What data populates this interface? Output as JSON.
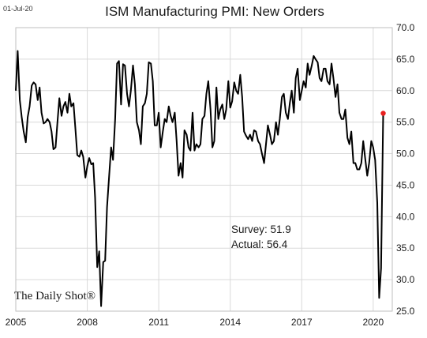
{
  "header": {
    "date": "01-Jul-20",
    "title": "ISM Manufacturing PMI: New Orders"
  },
  "annotations": {
    "survey": "Survey: 51.9",
    "actual": "Actual:  56.4"
  },
  "brand": {
    "logo_text": "The Daily Shot®"
  },
  "colors": {
    "line": "#000000",
    "last_point": "#e8201f",
    "grid": "#d9d9d9"
  },
  "chart_data": {
    "type": "line",
    "title": "ISM Manufacturing PMI: New Orders",
    "xlabel": "",
    "ylabel": "",
    "ylim": [
      25,
      70
    ],
    "xlim": [
      2005,
      2020.8
    ],
    "grid": true,
    "y_axis_side": "right",
    "y_ticks": [
      "70.0",
      "65.0",
      "60.0",
      "55.0",
      "50.0",
      "45.0",
      "40.0",
      "35.0",
      "30.0",
      "25.0"
    ],
    "x_ticks": [
      "2005",
      "2008",
      "2011",
      "2014",
      "2017",
      "2020"
    ],
    "series": [
      {
        "values": [
          [
            2005.0,
            60.0
          ],
          [
            2005.08,
            66.3
          ],
          [
            2005.17,
            58.5
          ],
          [
            2005.25,
            55.8
          ],
          [
            2005.33,
            53.5
          ],
          [
            2005.42,
            51.8
          ],
          [
            2005.5,
            55.8
          ],
          [
            2005.58,
            57.5
          ],
          [
            2005.67,
            60.8
          ],
          [
            2005.75,
            61.3
          ],
          [
            2005.83,
            61.0
          ],
          [
            2005.92,
            58.5
          ],
          [
            2006.0,
            60.5
          ],
          [
            2006.08,
            56.5
          ],
          [
            2006.17,
            54.8
          ],
          [
            2006.25,
            55.0
          ],
          [
            2006.33,
            55.5
          ],
          [
            2006.42,
            55.0
          ],
          [
            2006.5,
            53.5
          ],
          [
            2006.58,
            50.7
          ],
          [
            2006.67,
            51.0
          ],
          [
            2006.75,
            55.0
          ],
          [
            2006.83,
            58.8
          ],
          [
            2006.92,
            56.0
          ],
          [
            2007.0,
            57.5
          ],
          [
            2007.08,
            58.2
          ],
          [
            2007.17,
            56.5
          ],
          [
            2007.25,
            59.5
          ],
          [
            2007.33,
            57.5
          ],
          [
            2007.42,
            58.0
          ],
          [
            2007.5,
            54.0
          ],
          [
            2007.58,
            49.8
          ],
          [
            2007.67,
            49.5
          ],
          [
            2007.75,
            50.5
          ],
          [
            2007.83,
            49.5
          ],
          [
            2007.92,
            46.2
          ],
          [
            2008.0,
            48.0
          ],
          [
            2008.08,
            49.3
          ],
          [
            2008.17,
            48.3
          ],
          [
            2008.25,
            48.5
          ],
          [
            2008.33,
            43.0
          ],
          [
            2008.42,
            32.0
          ],
          [
            2008.5,
            34.5
          ],
          [
            2008.58,
            25.8
          ],
          [
            2008.67,
            32.8
          ],
          [
            2008.75,
            33.0
          ],
          [
            2008.83,
            41.5
          ],
          [
            2008.92,
            46.5
          ],
          [
            2009.0,
            51.0
          ],
          [
            2009.08,
            49.0
          ],
          [
            2009.17,
            55.5
          ],
          [
            2009.25,
            64.3
          ],
          [
            2009.33,
            64.7
          ],
          [
            2009.42,
            57.8
          ],
          [
            2009.5,
            64.2
          ],
          [
            2009.58,
            64.0
          ],
          [
            2009.67,
            59.5
          ],
          [
            2009.75,
            57.5
          ],
          [
            2009.83,
            60.0
          ],
          [
            2009.92,
            64.0
          ],
          [
            2010.0,
            61.0
          ],
          [
            2010.08,
            55.0
          ],
          [
            2010.17,
            53.7
          ],
          [
            2010.25,
            51.5
          ],
          [
            2010.33,
            57.5
          ],
          [
            2010.42,
            58.0
          ],
          [
            2010.5,
            59.5
          ],
          [
            2010.58,
            64.5
          ],
          [
            2010.67,
            64.3
          ],
          [
            2010.75,
            61.5
          ],
          [
            2010.83,
            54.5
          ],
          [
            2010.92,
            54.5
          ],
          [
            2011.0,
            56.5
          ],
          [
            2011.08,
            51.0
          ],
          [
            2011.17,
            53.5
          ],
          [
            2011.25,
            55.5
          ],
          [
            2011.33,
            55.0
          ],
          [
            2011.42,
            57.5
          ],
          [
            2011.5,
            56.0
          ],
          [
            2011.58,
            55.0
          ],
          [
            2011.67,
            56.5
          ],
          [
            2011.75,
            52.0
          ],
          [
            2011.83,
            46.5
          ],
          [
            2011.92,
            48.5
          ],
          [
            2012.0,
            46.2
          ],
          [
            2012.08,
            53.7
          ],
          [
            2012.17,
            53.0
          ],
          [
            2012.25,
            51.0
          ],
          [
            2012.33,
            50.5
          ],
          [
            2012.42,
            56.5
          ],
          [
            2012.5,
            50.5
          ],
          [
            2012.58,
            51.5
          ],
          [
            2012.67,
            51.0
          ],
          [
            2012.75,
            51.5
          ],
          [
            2012.83,
            55.5
          ],
          [
            2012.92,
            56.0
          ],
          [
            2013.0,
            59.5
          ],
          [
            2013.08,
            61.5
          ],
          [
            2013.17,
            57.0
          ],
          [
            2013.25,
            51.0
          ],
          [
            2013.33,
            52.0
          ],
          [
            2013.42,
            60.5
          ],
          [
            2013.5,
            55.5
          ],
          [
            2013.58,
            57.0
          ],
          [
            2013.67,
            57.8
          ],
          [
            2013.75,
            55.5
          ],
          [
            2013.83,
            57.0
          ],
          [
            2013.92,
            61.5
          ],
          [
            2014.0,
            57.3
          ],
          [
            2014.08,
            58.3
          ],
          [
            2014.17,
            61.3
          ],
          [
            2014.25,
            60.0
          ],
          [
            2014.33,
            59.5
          ],
          [
            2014.42,
            62.5
          ],
          [
            2014.5,
            59.0
          ],
          [
            2014.58,
            53.5
          ],
          [
            2014.67,
            52.8
          ],
          [
            2014.75,
            52.3
          ],
          [
            2014.83,
            53.0
          ],
          [
            2014.92,
            52.0
          ],
          [
            2015.0,
            53.7
          ],
          [
            2015.08,
            53.5
          ],
          [
            2015.17,
            52.0
          ],
          [
            2015.25,
            51.5
          ],
          [
            2015.33,
            50.0
          ],
          [
            2015.42,
            48.5
          ],
          [
            2015.5,
            51.5
          ],
          [
            2015.58,
            54.5
          ],
          [
            2015.67,
            53.0
          ],
          [
            2015.75,
            51.5
          ],
          [
            2015.83,
            52.0
          ],
          [
            2015.92,
            55.0
          ],
          [
            2016.0,
            53.0
          ],
          [
            2016.08,
            55.5
          ],
          [
            2016.17,
            59.0
          ],
          [
            2016.25,
            59.5
          ],
          [
            2016.33,
            56.5
          ],
          [
            2016.42,
            55.5
          ],
          [
            2016.5,
            58.0
          ],
          [
            2016.58,
            60.0
          ],
          [
            2016.67,
            56.5
          ],
          [
            2016.75,
            62.0
          ],
          [
            2016.83,
            63.5
          ],
          [
            2016.92,
            58.5
          ],
          [
            2017.0,
            60.0
          ],
          [
            2017.08,
            61.5
          ],
          [
            2017.17,
            60.5
          ],
          [
            2017.25,
            64.3
          ],
          [
            2017.33,
            62.5
          ],
          [
            2017.42,
            64.0
          ],
          [
            2017.5,
            65.5
          ],
          [
            2017.58,
            65.0
          ],
          [
            2017.67,
            64.5
          ],
          [
            2017.75,
            62.0
          ],
          [
            2017.83,
            61.5
          ],
          [
            2017.92,
            63.5
          ],
          [
            2018.0,
            63.5
          ],
          [
            2018.08,
            61.5
          ],
          [
            2018.17,
            61.0
          ],
          [
            2018.25,
            64.3
          ],
          [
            2018.33,
            62.0
          ],
          [
            2018.42,
            59.0
          ],
          [
            2018.5,
            61.0
          ],
          [
            2018.58,
            56.5
          ],
          [
            2018.67,
            55.5
          ],
          [
            2018.75,
            55.5
          ],
          [
            2018.83,
            57.0
          ],
          [
            2018.92,
            52.5
          ],
          [
            2019.0,
            51.5
          ],
          [
            2019.08,
            53.5
          ],
          [
            2019.17,
            48.5
          ],
          [
            2019.25,
            48.5
          ],
          [
            2019.33,
            47.5
          ],
          [
            2019.42,
            47.5
          ],
          [
            2019.5,
            48.5
          ],
          [
            2019.58,
            52.0
          ],
          [
            2019.67,
            49.0
          ],
          [
            2019.75,
            46.5
          ],
          [
            2019.83,
            48.5
          ],
          [
            2019.92,
            52.0
          ],
          [
            2020.0,
            51.0
          ],
          [
            2020.08,
            49.0
          ],
          [
            2020.17,
            42.2
          ],
          [
            2020.25,
            27.1
          ],
          [
            2020.33,
            31.8
          ],
          [
            2020.42,
            56.4
          ]
        ]
      }
    ]
  }
}
